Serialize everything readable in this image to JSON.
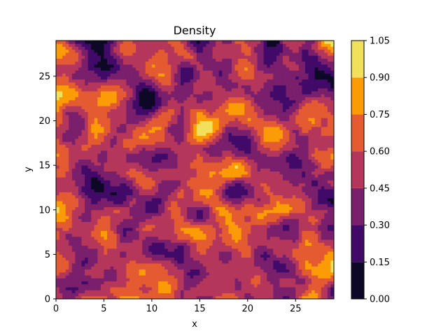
{
  "chart_data": {
    "type": "heatmap",
    "style": "filled-contour",
    "title": "Density",
    "xlabel": "x",
    "ylabel": "y",
    "xlim": [
      0,
      29
    ],
    "ylim": [
      0,
      29
    ],
    "x_ticks": [
      0,
      5,
      10,
      15,
      20,
      25
    ],
    "y_ticks": [
      0,
      5,
      10,
      15,
      20,
      25
    ],
    "grid": false,
    "colormap": "inferno",
    "colorbar": {
      "levels": [
        0.0,
        0.15,
        0.3,
        0.45,
        0.6,
        0.75,
        0.9,
        1.05
      ],
      "tick_labels": [
        "0.00",
        "0.15",
        "0.30",
        "0.45",
        "0.60",
        "0.75",
        "0.90",
        "1.05"
      ],
      "colors": [
        "#0c0826",
        "#420a68",
        "#7a1f6c",
        "#b5365b",
        "#e45a31",
        "#fb9b06",
        "#f0e05c"
      ]
    },
    "grid_shape": [
      30,
      30
    ]
  }
}
